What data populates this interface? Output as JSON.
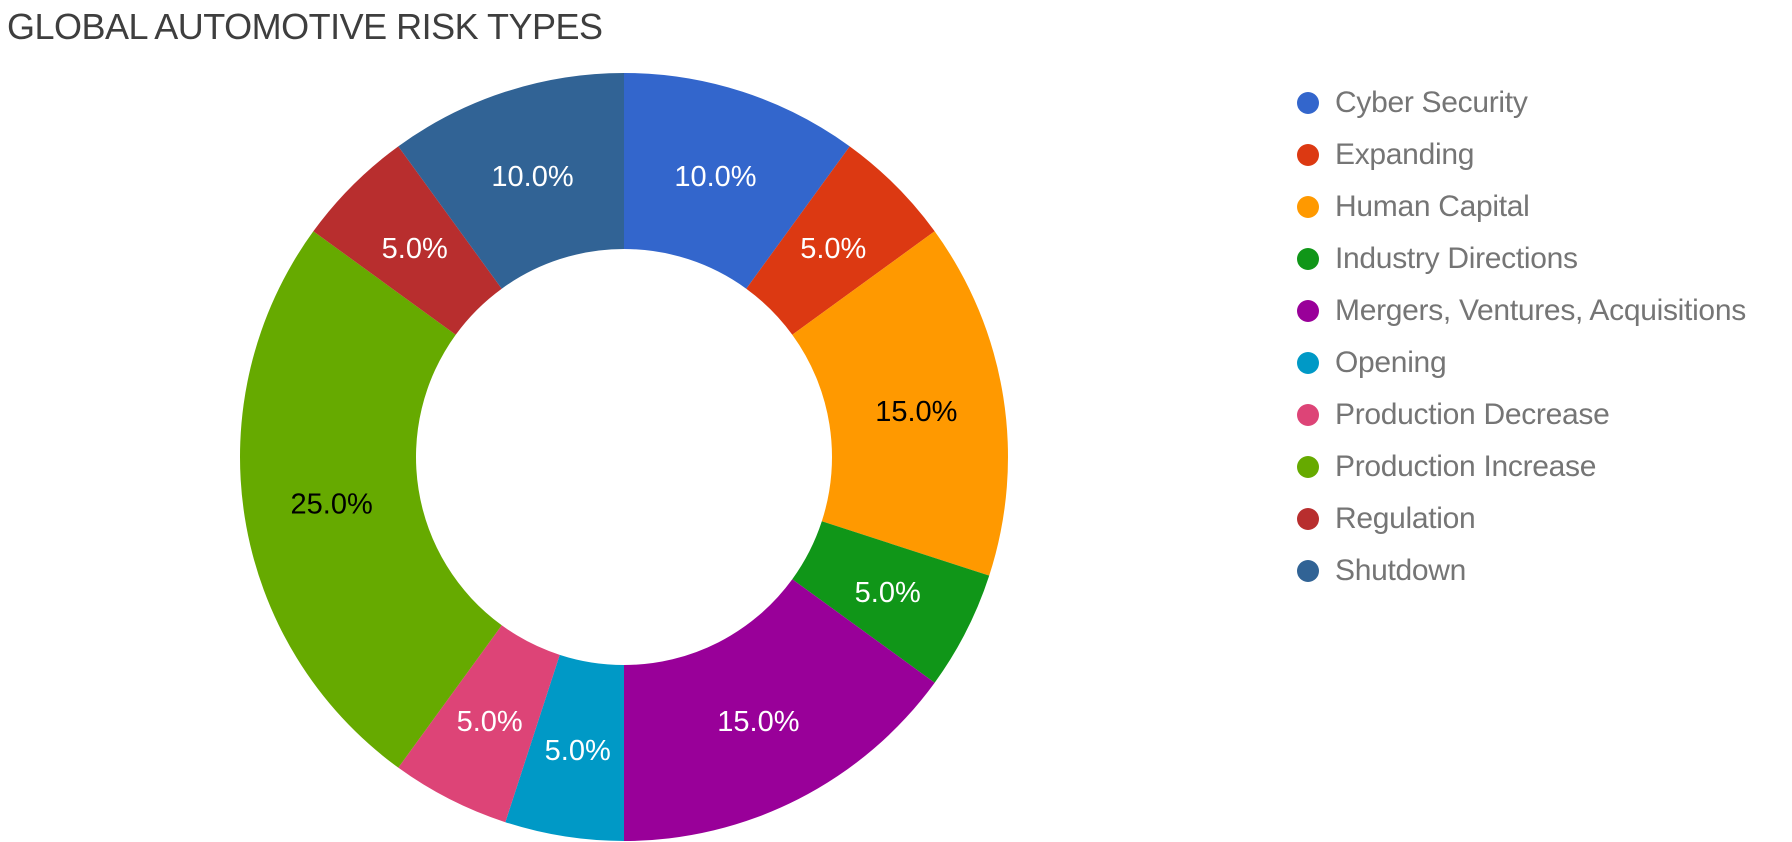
{
  "title": "GLOBAL AUTOMOTIVE RISK TYPES",
  "colors": {
    "background": "#ffffff",
    "title_text": "#3e3e3e",
    "legend_text": "#757575"
  },
  "chart_data": {
    "type": "pie",
    "subtype": "donut",
    "title": "GLOBAL AUTOMOTIVE RISK TYPES",
    "legend_position": "right",
    "direction": "clockwise",
    "start_angle_deg": 0,
    "hole_ratio": 0.54,
    "slices": [
      {
        "id": "cyber-security",
        "label": "Cyber Security",
        "value_pct": 10.0,
        "display_label": "10.0%",
        "color": "#3366CC",
        "label_text_color": "#ffffff"
      },
      {
        "id": "expanding",
        "label": "Expanding",
        "value_pct": 5.0,
        "display_label": "5.0%",
        "color": "#DC3912",
        "label_text_color": "#ffffff"
      },
      {
        "id": "human-capital",
        "label": "Human Capital",
        "value_pct": 15.0,
        "display_label": "15.0%",
        "color": "#FF9900",
        "label_text_color": "#000000"
      },
      {
        "id": "industry-directions",
        "label": "Industry Directions",
        "value_pct": 5.0,
        "display_label": "5.0%",
        "color": "#109618",
        "label_text_color": "#ffffff"
      },
      {
        "id": "mergers-ventures-acquisitions",
        "label": "Mergers, Ventures, Acquisitions",
        "value_pct": 15.0,
        "display_label": "15.0%",
        "color": "#990099",
        "label_text_color": "#ffffff"
      },
      {
        "id": "opening",
        "label": "Opening",
        "value_pct": 5.0,
        "display_label": "5.0%",
        "color": "#0099C6",
        "label_text_color": "#ffffff"
      },
      {
        "id": "production-decrease",
        "label": "Production Decrease",
        "value_pct": 5.0,
        "display_label": "5.0%",
        "color": "#DD4477",
        "label_text_color": "#ffffff"
      },
      {
        "id": "production-increase",
        "label": "Production Increase",
        "value_pct": 25.0,
        "display_label": "25.0%",
        "color": "#66AA00",
        "label_text_color": "#000000"
      },
      {
        "id": "regulation",
        "label": "Regulation",
        "value_pct": 5.0,
        "display_label": "5.0%",
        "color": "#B82E2E",
        "label_text_color": "#ffffff"
      },
      {
        "id": "shutdown",
        "label": "Shutdown",
        "value_pct": 10.0,
        "display_label": "10.0%",
        "color": "#316395",
        "label_text_color": "#ffffff"
      }
    ]
  }
}
